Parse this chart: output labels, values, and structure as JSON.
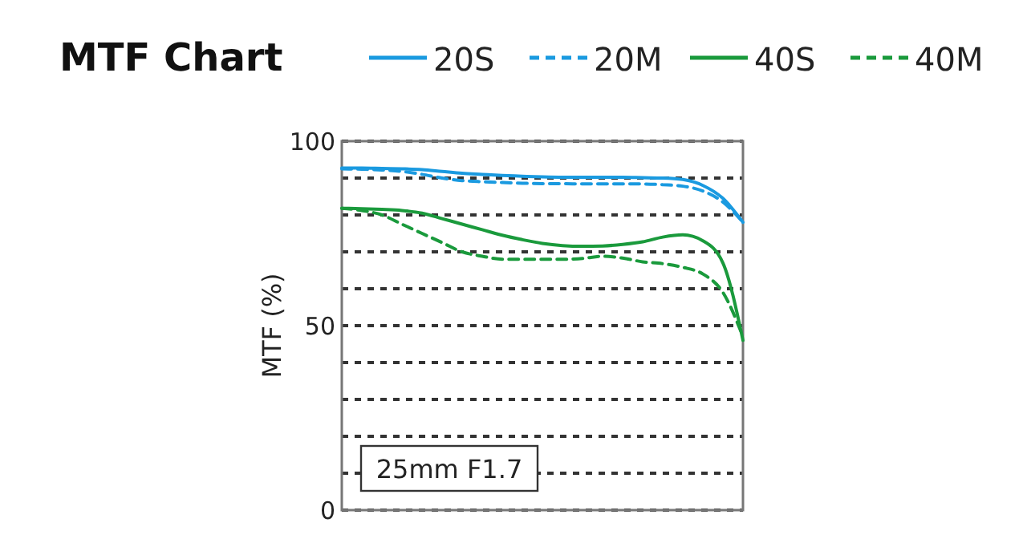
{
  "chart_data": {
    "type": "line",
    "title": "MTF Chart",
    "ylabel": "MTF (%)",
    "categories": [
      null,
      null,
      null,
      null,
      null,
      null,
      null,
      null,
      null,
      null,
      null,
      null,
      null,
      null,
      null,
      null,
      null,
      null,
      null,
      null,
      null
    ],
    "series": [
      {
        "name": "20S",
        "color": "#1a9ae0",
        "line_style": "solid",
        "values": [
          92.7,
          92.7,
          92.6,
          92.5,
          92.3,
          91.8,
          91.3,
          91,
          90.7,
          90.5,
          90.3,
          90.2,
          90.2,
          90.2,
          90.2,
          90.1,
          90,
          89.6,
          88,
          84.5,
          78
        ]
      },
      {
        "name": "20M",
        "color": "#1a9ae0",
        "line_style": "dashed",
        "values": [
          92.5,
          92.4,
          92.2,
          91.8,
          91,
          90,
          89.3,
          89,
          88.8,
          88.6,
          88.5,
          88.5,
          88.4,
          88.4,
          88.4,
          88.4,
          88.2,
          87.8,
          86.5,
          83.5,
          78
        ]
      },
      {
        "name": "40S",
        "color": "#1a9a3c",
        "line_style": "solid",
        "values": [
          81.8,
          81.7,
          81.5,
          81.2,
          80.5,
          79,
          77.5,
          76,
          74.5,
          73.3,
          72.3,
          71.7,
          71.5,
          71.6,
          72,
          72.7,
          74,
          74.6,
          73,
          67,
          46
        ]
      },
      {
        "name": "40M",
        "color": "#1a9a3c",
        "line_style": "dashed",
        "values": [
          81.8,
          81.2,
          80,
          77.5,
          75,
          72.5,
          70,
          68.8,
          68,
          68,
          68,
          68,
          68.2,
          68.8,
          68.3,
          67.3,
          66.8,
          65.8,
          64,
          59,
          47
        ]
      }
    ],
    "ylim": [
      0,
      100
    ],
    "yticks": [
      0,
      {
        "value": 10,
        "label": null
      },
      {
        "value": 20,
        "label": null
      },
      {
        "value": 30,
        "label": null
      },
      {
        "value": 40,
        "label": null
      },
      50,
      {
        "value": 60,
        "label": null
      },
      {
        "value": 70,
        "label": null
      },
      {
        "value": 80,
        "label": null
      },
      {
        "value": 90,
        "label": null
      },
      100
    ],
    "grid": "y",
    "legend": "top",
    "tick_labels": "y",
    "annotations": [
      "25mm F1.7"
    ]
  }
}
